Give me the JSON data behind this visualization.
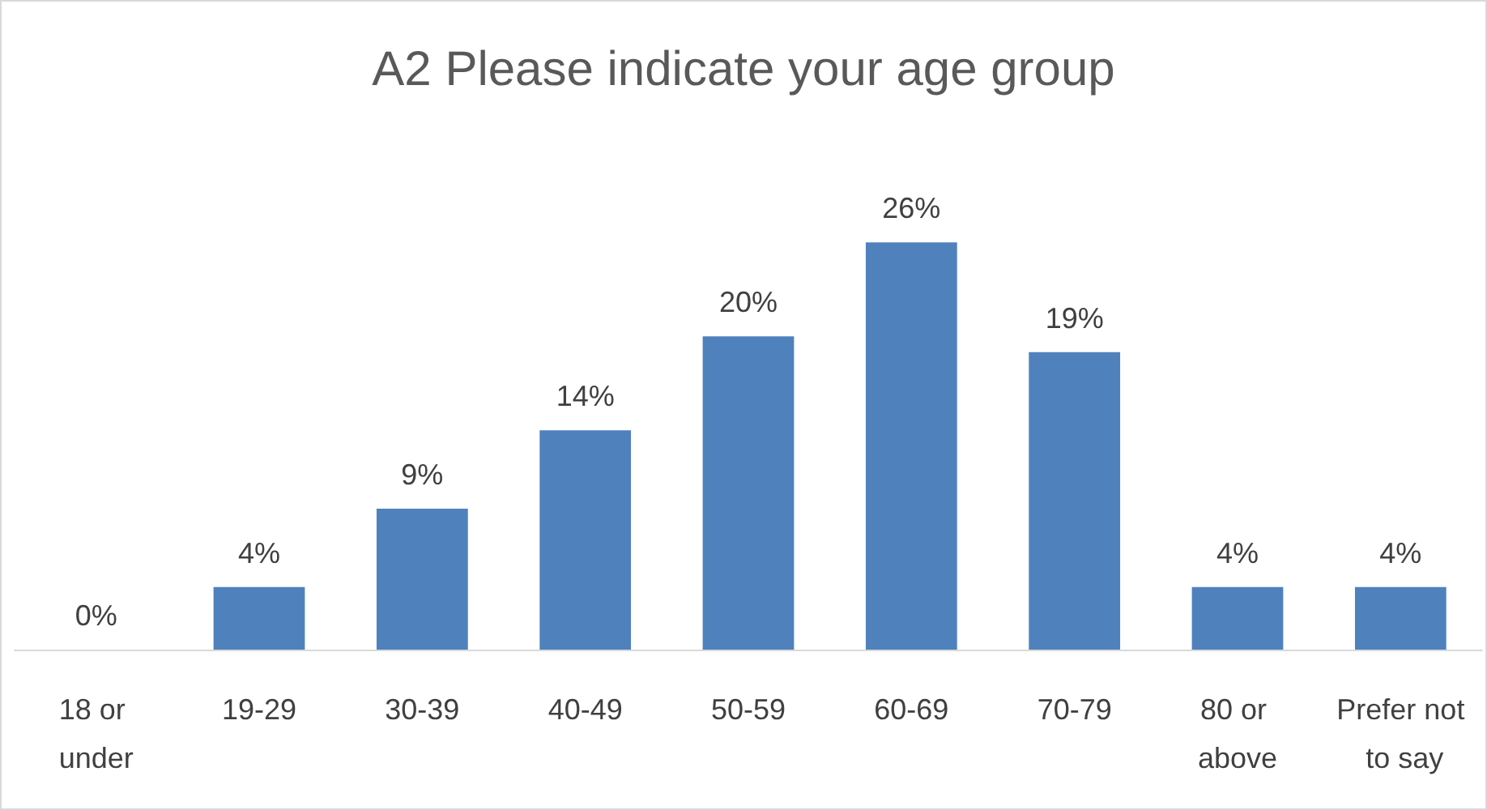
{
  "chart_data": {
    "type": "bar",
    "title": "A2 Please indicate your age group",
    "categories": [
      "18 or under",
      "19-29",
      "30-39",
      "40-49",
      "50-59",
      "60-69",
      "70-79",
      "80 or above",
      "Prefer not to say"
    ],
    "values": [
      0,
      4,
      9,
      14,
      20,
      26,
      19,
      4,
      4
    ],
    "color": "#4f81bd",
    "value_labels": [
      "0%",
      "4%",
      "9%",
      "14%",
      "20%",
      "26%",
      "19%",
      "4%",
      "4%"
    ],
    "grid": false
  }
}
